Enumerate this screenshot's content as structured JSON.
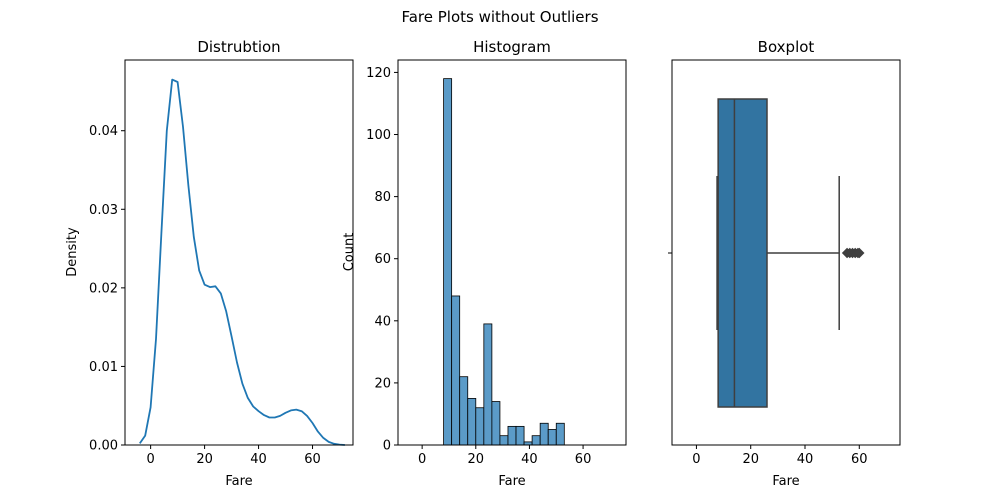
{
  "suptitle": "Fare Plots without Outliers",
  "colors": {
    "line": "#1f77b4",
    "hist_fill": "#5b9bc8",
    "box_fill": "#3274a1",
    "box_line": "#3f3f3f",
    "axis": "#000000"
  },
  "chart_data": [
    {
      "type": "line",
      "title": "Distrubtion",
      "xlabel": "Fare",
      "ylabel": "Density",
      "xlim": [
        -9.5,
        75
      ],
      "ylim": [
        0,
        0.049
      ],
      "xticks": [
        0,
        20,
        40,
        60
      ],
      "xtick_labels": [
        "0",
        "20",
        "40",
        "60"
      ],
      "yticks": [
        0,
        0.01,
        0.02,
        0.03,
        0.04
      ],
      "ytick_labels": [
        "0.00",
        "0.01",
        "0.02",
        "0.03",
        "0.04"
      ],
      "grid": false,
      "series": [
        {
          "x": [
            -4,
            -2,
            0,
            2,
            4,
            6,
            8,
            10,
            12,
            14,
            16,
            18,
            20,
            22,
            24,
            26,
            28,
            30,
            32,
            34,
            36,
            38,
            40,
            42,
            44,
            46,
            48,
            50,
            52,
            54,
            56,
            58,
            60,
            62,
            64,
            66,
            68,
            70,
            72
          ],
          "y": [
            0.0002,
            0.0012,
            0.0048,
            0.0135,
            0.027,
            0.04,
            0.0465,
            0.0462,
            0.0405,
            0.033,
            0.0265,
            0.0222,
            0.0204,
            0.0201,
            0.0202,
            0.0193,
            0.017,
            0.0138,
            0.0105,
            0.0078,
            0.006,
            0.0049,
            0.0043,
            0.0038,
            0.0035,
            0.0035,
            0.0037,
            0.0041,
            0.0044,
            0.0045,
            0.0043,
            0.0037,
            0.0028,
            0.0017,
            0.0009,
            0.0004,
            0.00015,
            5e-05,
            0.0
          ]
        }
      ]
    },
    {
      "type": "bar",
      "title": "Histogram",
      "xlabel": "Fare",
      "ylabel": "Count",
      "xlim": [
        -9,
        76
      ],
      "ylim": [
        0,
        124
      ],
      "xticks": [
        0,
        20,
        40,
        60
      ],
      "xtick_labels": [
        "0",
        "20",
        "40",
        "60"
      ],
      "yticks": [
        0,
        20,
        40,
        60,
        80,
        100,
        120
      ],
      "ytick_labels": [
        "0",
        "20",
        "40",
        "60",
        "80",
        "100",
        "120"
      ],
      "grid": false,
      "bin_edges": [
        8,
        11,
        14,
        17,
        20,
        23,
        26,
        29,
        32,
        35,
        38,
        41,
        44,
        47,
        50,
        53,
        56,
        59.5
      ],
      "values": [
        118,
        48,
        22,
        15,
        12,
        39,
        14,
        3,
        6,
        6,
        1,
        3,
        7,
        5,
        7,
        0,
        0
      ]
    },
    {
      "type": "box",
      "title": "Boxplot",
      "xlabel": "Fare",
      "ylabel": "",
      "xlim": [
        -9,
        75
      ],
      "xticks": [
        0,
        20,
        40,
        60
      ],
      "xtick_labels": [
        "0",
        "20",
        "40",
        "60"
      ],
      "whisker_low": 7.6,
      "q1": 8.0,
      "median": 14.0,
      "q3": 26.0,
      "whisker_high": 52.6,
      "outliers": [
        55.5,
        56.5,
        57.5,
        58.5,
        59.5,
        60.0
      ]
    }
  ]
}
